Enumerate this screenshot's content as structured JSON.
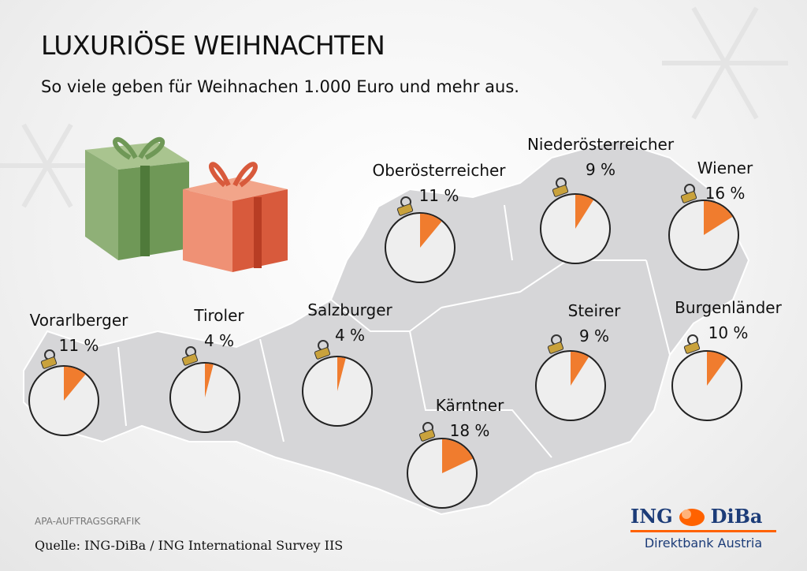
{
  "header": {
    "title": "LUXURIÖSE WEIHNACHTEN",
    "subtitle": "So viele geben für Weihnachen 1.000 Euro und mehr aus."
  },
  "chart_data": {
    "type": "pie",
    "title": "LUXURIÖSE WEIHNACHTEN",
    "subtitle": "So viele geben für Weihnachen 1.000 Euro und mehr aus.",
    "unit": "%",
    "categories": [
      "Oberösterreicher",
      "Niederösterreicher",
      "Wiener",
      "Vorarlberger",
      "Tiroler",
      "Salzburger",
      "Steirer",
      "Burgenländer",
      "Kärntner"
    ],
    "values": [
      11,
      9,
      16,
      11,
      4,
      4,
      9,
      10,
      18
    ],
    "labels": [
      "11 %",
      "9 %",
      "16 %",
      "11 %",
      "4 %",
      "4 %",
      "9 %",
      "10 %",
      "18 %"
    ],
    "colors": {
      "slice": "#f07c2e",
      "ornament": "#eeeeee",
      "map": "#d6d6d8",
      "cap": "#c9a23c"
    }
  },
  "footer": {
    "credit": "APA-AUFTRAGSGRAFIK",
    "source": "Quelle: ING-DiBa / ING International Survey IIS"
  },
  "logo": {
    "left": "ING",
    "right": "DiBa",
    "tagline": "Direktbank Austria"
  }
}
